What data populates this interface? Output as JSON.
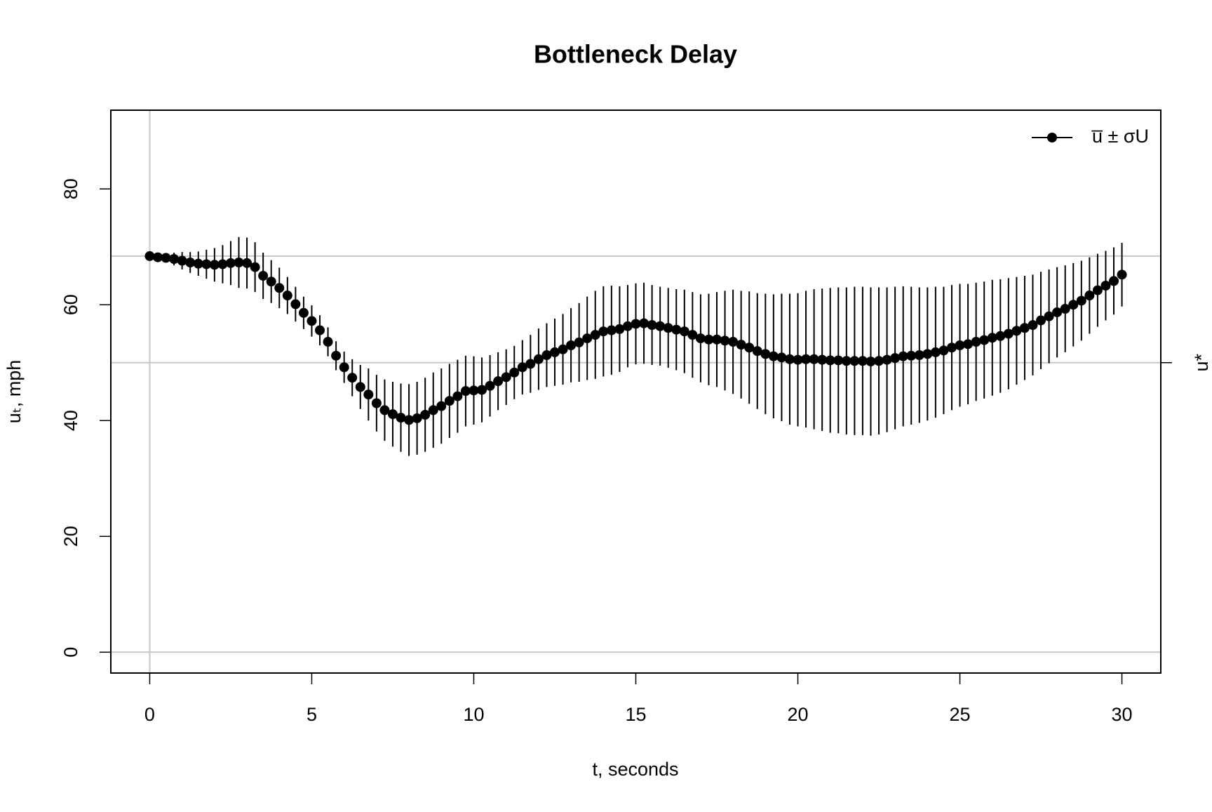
{
  "chart_data": {
    "type": "errorbar",
    "title": "Bottleneck Delay",
    "x_label": "t, seconds",
    "y_label": "uₜ, mph",
    "x": [
      0,
      0.25,
      0.5,
      0.75,
      1,
      1.25,
      1.5,
      1.75,
      2,
      2.25,
      2.5,
      2.75,
      3,
      3.25,
      3.5,
      3.75,
      4,
      4.25,
      4.5,
      4.75,
      5,
      5.25,
      5.5,
      5.75,
      6,
      6.25,
      6.5,
      6.75,
      7,
      7.25,
      7.5,
      7.75,
      8,
      8.25,
      8.5,
      8.75,
      9,
      9.25,
      9.5,
      9.75,
      10,
      10.25,
      10.5,
      10.75,
      11,
      11.25,
      11.5,
      11.75,
      12,
      12.25,
      12.5,
      12.75,
      13,
      13.25,
      13.5,
      13.75,
      14,
      14.25,
      14.5,
      14.75,
      15,
      15.25,
      15.5,
      15.75,
      16,
      16.25,
      16.5,
      16.75,
      17,
      17.25,
      17.5,
      17.75,
      18,
      18.25,
      18.5,
      18.75,
      19,
      19.25,
      19.5,
      19.75,
      20,
      20.25,
      20.5,
      20.75,
      21,
      21.25,
      21.5,
      21.75,
      22,
      22.25,
      22.5,
      22.75,
      23,
      23.25,
      23.5,
      23.75,
      24,
      24.25,
      24.5,
      24.75,
      25,
      25.25,
      25.5,
      25.75,
      26,
      26.25,
      26.5,
      26.75,
      27,
      27.25,
      27.5,
      27.75,
      28,
      28.25,
      28.5,
      28.75,
      29,
      29.25,
      29.5,
      29.75,
      30
    ],
    "series": [
      {
        "name": "u̅ ± σU",
        "color": "#000000",
        "values": [
          68.4,
          68.2,
          68.1,
          67.9,
          67.6,
          67.3,
          67.1,
          67.0,
          66.9,
          67.0,
          67.2,
          67.3,
          67.2,
          66.5,
          65.0,
          64.0,
          62.9,
          61.6,
          60.1,
          58.6,
          57.2,
          55.6,
          53.6,
          51.2,
          49.2,
          47.4,
          45.8,
          44.5,
          43.0,
          41.8,
          41.1,
          40.5,
          40.1,
          40.4,
          41.0,
          41.8,
          42.5,
          43.4,
          44.2,
          45.1,
          45.2,
          45.3,
          46.0,
          46.8,
          47.5,
          48.3,
          49.2,
          49.8,
          50.6,
          51.3,
          51.8,
          52.3,
          53.0,
          53.5,
          54.2,
          54.8,
          55.4,
          55.6,
          55.8,
          56.3,
          56.7,
          56.8,
          56.5,
          56.3,
          56.0,
          55.7,
          55.4,
          54.8,
          54.2,
          54.0,
          54.0,
          53.8,
          53.6,
          53.1,
          52.6,
          52.0,
          51.5,
          51.1,
          50.9,
          50.6,
          50.5,
          50.6,
          50.6,
          50.5,
          50.4,
          50.4,
          50.3,
          50.3,
          50.3,
          50.2,
          50.3,
          50.5,
          50.8,
          51.1,
          51.2,
          51.3,
          51.5,
          51.8,
          52.1,
          52.6,
          53.0,
          53.2,
          53.6,
          53.9,
          54.3,
          54.6,
          55.0,
          55.5,
          56.0,
          56.5,
          57.3,
          58.0,
          58.7,
          59.3,
          60.0,
          60.7,
          61.6,
          62.5,
          63.3,
          64.1,
          65.2
        ],
        "errors": [
          0.3,
          0.5,
          0.8,
          1.1,
          1.5,
          1.8,
          2.1,
          2.5,
          2.9,
          3.3,
          3.8,
          4.4,
          4.4,
          4.3,
          4.0,
          3.7,
          3.5,
          3.2,
          3.0,
          2.8,
          2.7,
          2.6,
          2.5,
          2.5,
          2.7,
          3.2,
          3.8,
          4.5,
          4.9,
          5.3,
          5.6,
          5.9,
          6.2,
          6.3,
          6.4,
          6.5,
          6.5,
          6.4,
          6.3,
          6.1,
          5.9,
          5.6,
          5.3,
          5.0,
          4.8,
          4.6,
          4.7,
          5.0,
          5.3,
          5.5,
          5.8,
          6.1,
          6.4,
          6.8,
          7.2,
          7.6,
          7.8,
          7.7,
          7.4,
          7.1,
          7.0,
          7.0,
          6.9,
          6.8,
          6.9,
          7.0,
          7.2,
          7.4,
          7.6,
          7.9,
          8.2,
          8.6,
          9.0,
          9.3,
          9.7,
          10.0,
          10.4,
          10.7,
          11.0,
          11.3,
          11.5,
          11.8,
          12.1,
          12.3,
          12.5,
          12.6,
          12.7,
          12.8,
          12.8,
          12.8,
          12.7,
          12.5,
          12.3,
          12.1,
          11.9,
          11.7,
          11.5,
          11.3,
          11.0,
          10.8,
          10.6,
          10.4,
          10.2,
          10.1,
          10.0,
          9.8,
          9.6,
          9.3,
          9.0,
          8.7,
          8.4,
          8.1,
          7.8,
          7.5,
          7.2,
          6.9,
          6.6,
          6.3,
          6.0,
          5.8,
          5.5
        ]
      }
    ],
    "xlim": [
      0,
      30
    ],
    "xticks": [
      0,
      5,
      10,
      15,
      20,
      25,
      30
    ],
    "ylim": [
      0,
      90
    ],
    "yticks": [
      0,
      20,
      40,
      60,
      80
    ],
    "y2ticks": [
      {
        "value": 50,
        "label": "u*"
      }
    ],
    "reference_lines": {
      "h": [
        0,
        68.4,
        50
      ],
      "v": [
        0
      ],
      "color": "#c8c8c8"
    },
    "legend": "top-right"
  }
}
